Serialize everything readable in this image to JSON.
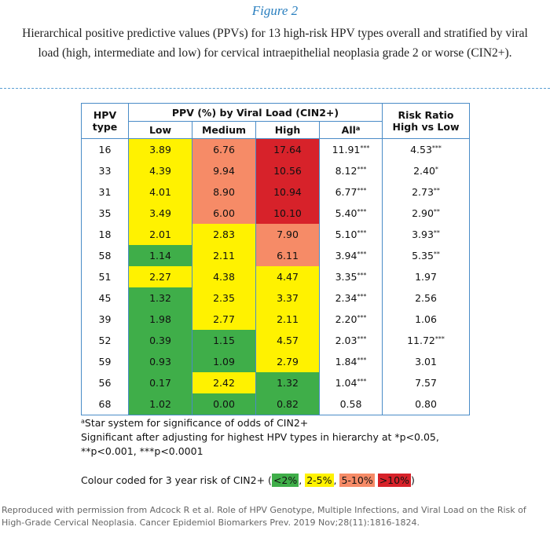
{
  "figure": {
    "label": "Figure 2",
    "caption": "Hierarchical positive predictive values (PPVs) for 13 high-risk HPV types overall and stratified by viral load (high, intermediate and low) for cervical intraepithelial neoplasia grade 2 or worse (CIN2+)."
  },
  "table": {
    "headers": {
      "hpv_type": [
        "HPV",
        "type"
      ],
      "group": "PPV (%) by Viral Load (CIN2+)",
      "low": "Low",
      "medium": "Medium",
      "high": "High",
      "all": "All",
      "all_sup": "a",
      "risk_ratio": [
        "Risk Ratio",
        "High vs Low"
      ]
    },
    "colors": {
      "lt2": "#3fae49",
      "2to5": "#fff200",
      "5to10": "#f68b67",
      "gt10": "#d7222a"
    },
    "rows": [
      {
        "type": "16",
        "low": "3.89",
        "low_c": "y",
        "medium": "6.76",
        "medium_c": "o",
        "high": "17.64",
        "high_c": "r",
        "all": "11.91",
        "all_stars": "***",
        "rr": "4.53",
        "rr_stars": "***"
      },
      {
        "type": "33",
        "low": "4.39",
        "low_c": "y",
        "medium": "9.94",
        "medium_c": "o",
        "high": "10.56",
        "high_c": "r",
        "all": "8.12",
        "all_stars": "***",
        "rr": "2.40",
        "rr_stars": "*"
      },
      {
        "type": "31",
        "low": "4.01",
        "low_c": "y",
        "medium": "8.90",
        "medium_c": "o",
        "high": "10.94",
        "high_c": "r",
        "all": "6.77",
        "all_stars": "***",
        "rr": "2.73",
        "rr_stars": "**"
      },
      {
        "type": "35",
        "low": "3.49",
        "low_c": "y",
        "medium": "6.00",
        "medium_c": "o",
        "high": "10.10",
        "high_c": "r",
        "all": "5.40",
        "all_stars": "***",
        "rr": "2.90",
        "rr_stars": "**"
      },
      {
        "type": "18",
        "low": "2.01",
        "low_c": "y",
        "medium": "2.83",
        "medium_c": "y",
        "high": "7.90",
        "high_c": "o",
        "all": "5.10",
        "all_stars": "***",
        "rr": "3.93",
        "rr_stars": "**"
      },
      {
        "type": "58",
        "low": "1.14",
        "low_c": "g",
        "medium": "2.11",
        "medium_c": "y",
        "high": "6.11",
        "high_c": "o",
        "all": "3.94",
        "all_stars": "***",
        "rr": "5.35",
        "rr_stars": "**"
      },
      {
        "type": "51",
        "low": "2.27",
        "low_c": "y",
        "medium": "4.38",
        "medium_c": "y",
        "high": "4.47",
        "high_c": "y",
        "all": "3.35",
        "all_stars": "***",
        "rr": "1.97",
        "rr_stars": ""
      },
      {
        "type": "45",
        "low": "1.32",
        "low_c": "g",
        "medium": "2.35",
        "medium_c": "y",
        "high": "3.37",
        "high_c": "y",
        "all": "2.34",
        "all_stars": "***",
        "rr": "2.56",
        "rr_stars": ""
      },
      {
        "type": "39",
        "low": "1.98",
        "low_c": "g",
        "medium": "2.77",
        "medium_c": "y",
        "high": "2.11",
        "high_c": "y",
        "all": "2.20",
        "all_stars": "***",
        "rr": "1.06",
        "rr_stars": ""
      },
      {
        "type": "52",
        "low": "0.39",
        "low_c": "g",
        "medium": "1.15",
        "medium_c": "g",
        "high": "4.57",
        "high_c": "y",
        "all": "2.03",
        "all_stars": "***",
        "rr": "11.72",
        "rr_stars": "***"
      },
      {
        "type": "59",
        "low": "0.93",
        "low_c": "g",
        "medium": "1.09",
        "medium_c": "g",
        "high": "2.79",
        "high_c": "y",
        "all": "1.84",
        "all_stars": "***",
        "rr": "3.01",
        "rr_stars": ""
      },
      {
        "type": "56",
        "low": "0.17",
        "low_c": "g",
        "medium": "2.42",
        "medium_c": "y",
        "high": "1.32",
        "high_c": "g",
        "all": "1.04",
        "all_stars": "***",
        "rr": "7.57",
        "rr_stars": ""
      },
      {
        "type": "68",
        "low": "1.02",
        "low_c": "g",
        "medium": "0.00",
        "medium_c": "g",
        "high": "0.82",
        "high_c": "g",
        "all": "0.58",
        "all_stars": "",
        "rr": "0.80",
        "rr_stars": ""
      }
    ]
  },
  "notes": {
    "footnote_sup": "a",
    "footnote": "Star system for significance of odds of CIN2+",
    "sig_line1": "Significant after adjusting for highest HPV types in hierarchy at *p<0.05,",
    "sig_line2": "**p<0.001, ***p<0.0001",
    "legend_prefix": "Colour coded for 3 year risk of CIN2+ (",
    "legend_items": [
      "<2%",
      "2-5%",
      "5-10%",
      ">10%"
    ],
    "legend_sep1": ", ",
    "legend_sep2": ", ",
    "legend_sep3": " ",
    "legend_suffix": ")"
  },
  "source": "Reproduced with permission from Adcock R et al. Role of HPV Genotype, Multiple Infections, and Viral Load on the Risk of High-Grade Cervical Neoplasia. Cancer Epidemiol Biomarkers Prev. 2019 Nov;28(11):1816-1824."
}
